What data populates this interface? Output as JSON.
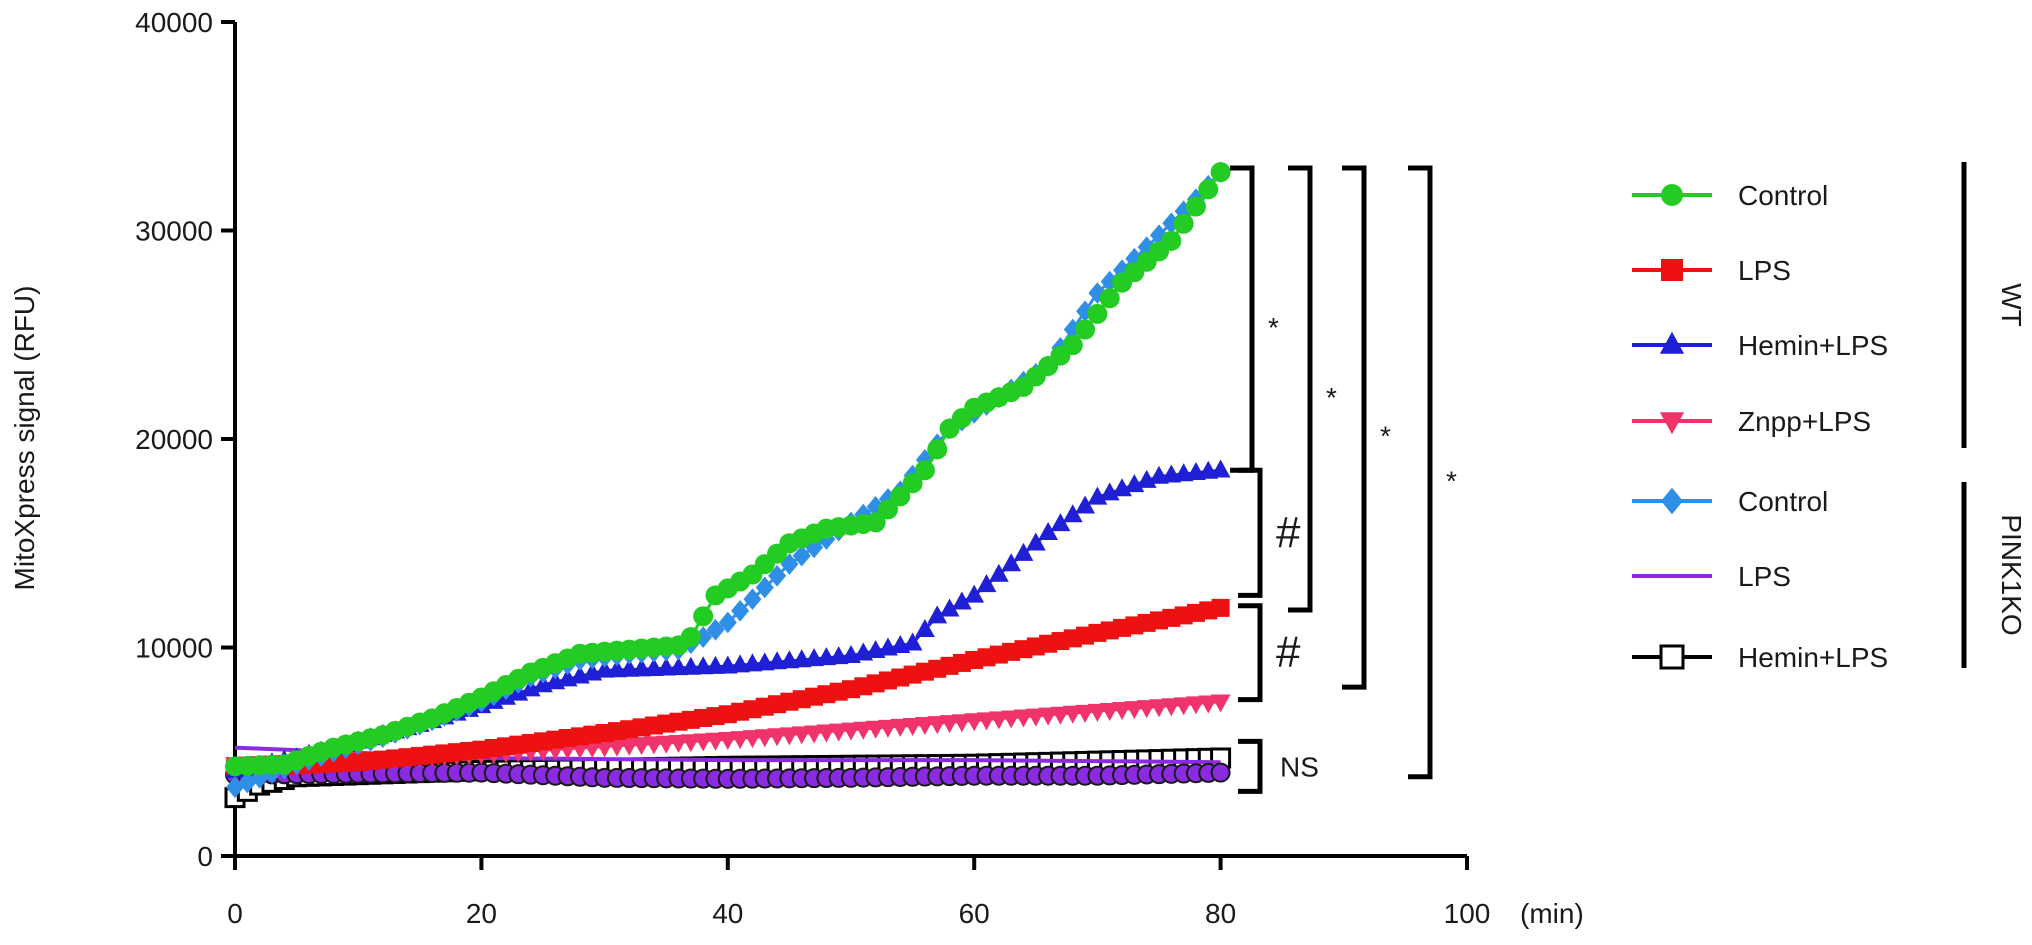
{
  "chart_data": {
    "type": "line",
    "title": "",
    "ylabel": "MitoXpress signal (RFU)",
    "xunit": "(min)",
    "xlim": [
      0,
      100
    ],
    "ylim": [
      0,
      40000
    ],
    "xticks": [
      "0",
      "20",
      "40",
      "60",
      "80",
      "100"
    ],
    "yticks": [
      "0",
      "10000",
      "20000",
      "30000",
      "40000"
    ],
    "grid": false,
    "legend_position": "right",
    "series": [
      {
        "name": "Control",
        "group": "WT",
        "color": "#22cc22",
        "marker": "circle",
        "points": [
          [
            0,
            4300
          ],
          [
            4,
            4400
          ],
          [
            8,
            5200
          ],
          [
            12,
            5800
          ],
          [
            16,
            6600
          ],
          [
            20,
            7600
          ],
          [
            24,
            8800
          ],
          [
            28,
            9700
          ],
          [
            32,
            9900
          ],
          [
            36,
            10100
          ],
          [
            37,
            10500
          ],
          [
            38,
            11500
          ],
          [
            39,
            12500
          ],
          [
            42,
            13500
          ],
          [
            45,
            15000
          ],
          [
            48,
            15700
          ],
          [
            52,
            16000
          ],
          [
            56,
            18500
          ],
          [
            58,
            20500
          ],
          [
            60,
            21500
          ],
          [
            64,
            22500
          ],
          [
            68,
            24500
          ],
          [
            72,
            27500
          ],
          [
            76,
            29500
          ],
          [
            80,
            32800
          ]
        ]
      },
      {
        "name": "LPS",
        "group": "WT",
        "color": "#ee1111",
        "marker": "square",
        "points": [
          [
            0,
            4200
          ],
          [
            10,
            4500
          ],
          [
            20,
            5100
          ],
          [
            30,
            5900
          ],
          [
            40,
            6800
          ],
          [
            50,
            8000
          ],
          [
            60,
            9400
          ],
          [
            70,
            10700
          ],
          [
            80,
            11900
          ]
        ]
      },
      {
        "name": "Hemin+LPS",
        "group": "WT",
        "color": "#1f1fd6",
        "marker": "triangle",
        "points": [
          [
            0,
            4100
          ],
          [
            5,
            4700
          ],
          [
            10,
            5500
          ],
          [
            15,
            6300
          ],
          [
            20,
            7200
          ],
          [
            25,
            8200
          ],
          [
            30,
            8900
          ],
          [
            40,
            9100
          ],
          [
            50,
            9600
          ],
          [
            55,
            10200
          ],
          [
            57,
            11500
          ],
          [
            60,
            12500
          ],
          [
            63,
            14000
          ],
          [
            66,
            15500
          ],
          [
            70,
            17200
          ],
          [
            75,
            18200
          ],
          [
            80,
            18500
          ]
        ]
      },
      {
        "name": "Znpp+LPS",
        "group": "WT",
        "color": "#f0336b",
        "marker": "triangle-down",
        "points": [
          [
            0,
            4400
          ],
          [
            20,
            4900
          ],
          [
            40,
            5600
          ],
          [
            60,
            6500
          ],
          [
            80,
            7400
          ]
        ]
      },
      {
        "name": "Control",
        "group": "PINK1KO",
        "color": "#2f8fe6",
        "marker": "diamond",
        "points": [
          [
            0,
            3300
          ],
          [
            4,
            4200
          ],
          [
            8,
            5000
          ],
          [
            12,
            5700
          ],
          [
            16,
            6500
          ],
          [
            20,
            7400
          ],
          [
            24,
            8600
          ],
          [
            28,
            9400
          ],
          [
            32,
            9700
          ],
          [
            36,
            9900
          ],
          [
            38,
            10500
          ],
          [
            40,
            11200
          ],
          [
            45,
            14000
          ],
          [
            50,
            16000
          ],
          [
            54,
            17500
          ],
          [
            58,
            20500
          ],
          [
            62,
            22000
          ],
          [
            66,
            23500
          ],
          [
            70,
            27000
          ],
          [
            74,
            29200
          ],
          [
            78,
            31500
          ],
          [
            80,
            32800
          ]
        ]
      },
      {
        "name": "LPS",
        "group": "PINK1KO",
        "color": "#8a2be2",
        "marker": "none",
        "points": [
          [
            0,
            5200
          ],
          [
            20,
            4700
          ],
          [
            40,
            4600
          ],
          [
            60,
            4600
          ],
          [
            80,
            4500
          ]
        ]
      },
      {
        "name": "Hemin+LPS",
        "group": "PINK1KO",
        "color": "#000000",
        "marker": "open-square",
        "points": [
          [
            0,
            2800
          ],
          [
            2,
            3400
          ],
          [
            5,
            3800
          ],
          [
            20,
            4100
          ],
          [
            40,
            4300
          ],
          [
            60,
            4400
          ],
          [
            80,
            4700
          ]
        ]
      },
      {
        "name": "",
        "group": "",
        "color": "#8a2be2",
        "marker": "filled-circle-outlined",
        "points": [
          [
            0,
            3900
          ],
          [
            20,
            4000
          ],
          [
            30,
            3750
          ],
          [
            40,
            3700
          ],
          [
            50,
            3750
          ],
          [
            60,
            3850
          ],
          [
            70,
            3850
          ],
          [
            80,
            4000
          ]
        ]
      }
    ],
    "groups": [
      "WT",
      "PINK1KO"
    ],
    "annotations": [
      {
        "label": "*",
        "from": 18500,
        "to": 33000
      },
      {
        "label": "#",
        "from": 12500,
        "to": 18500
      },
      {
        "label": "#",
        "from": 7500,
        "to": 12000
      },
      {
        "label": "NS",
        "from": 3100,
        "to": 5500
      },
      {
        "label": "*",
        "from": 11800,
        "to": 33000
      },
      {
        "label": "*",
        "from": 8100,
        "to": 33000
      },
      {
        "label": "*",
        "from": 3800,
        "to": 33000
      }
    ]
  }
}
